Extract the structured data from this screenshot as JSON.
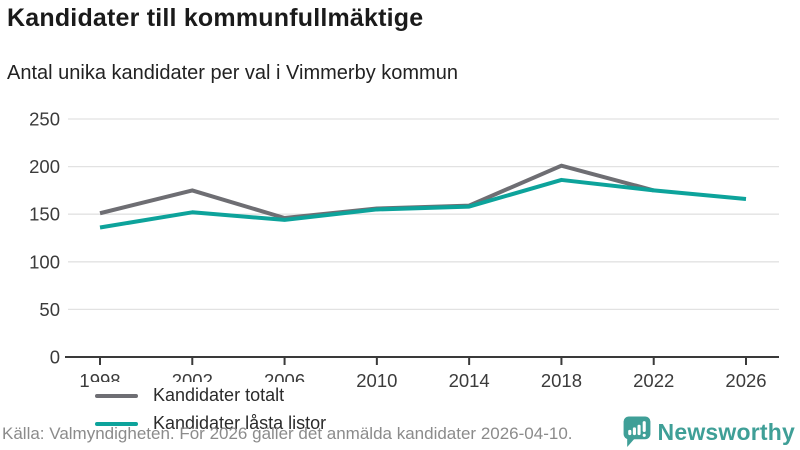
{
  "header": {
    "title": "Kandidater till kommunfullmäktige",
    "subtitle": "Antal unika kandidater per val i Vimmerby kommun"
  },
  "chart_data": {
    "type": "line",
    "x": [
      1998,
      2002,
      2006,
      2010,
      2014,
      2018,
      2022,
      2026
    ],
    "series": [
      {
        "name": "Kandidater totalt",
        "color": "#6e6e73",
        "values": [
          151,
          175,
          146,
          156,
          159,
          201,
          175,
          null
        ]
      },
      {
        "name": "Kandidater låsta listor",
        "color": "#0da39b",
        "values": [
          136,
          152,
          144,
          155,
          158,
          186,
          175,
          166
        ]
      }
    ],
    "ylim": [
      0,
      250
    ],
    "yticks": [
      0,
      50,
      100,
      150,
      200,
      250
    ],
    "grid": true,
    "legend_position": "inside-bottom-left",
    "grid_color": "#e2e2e2",
    "axis_color": "#3a3a3a",
    "tick_label_color": "#3b3b3b"
  },
  "footer": {
    "source": "Källa: Valmyndigheten. För 2026 gäller det anmälda kandidater 2026-04-10.",
    "brand": "Newsworthy",
    "brand_color": "#3f9f97"
  }
}
